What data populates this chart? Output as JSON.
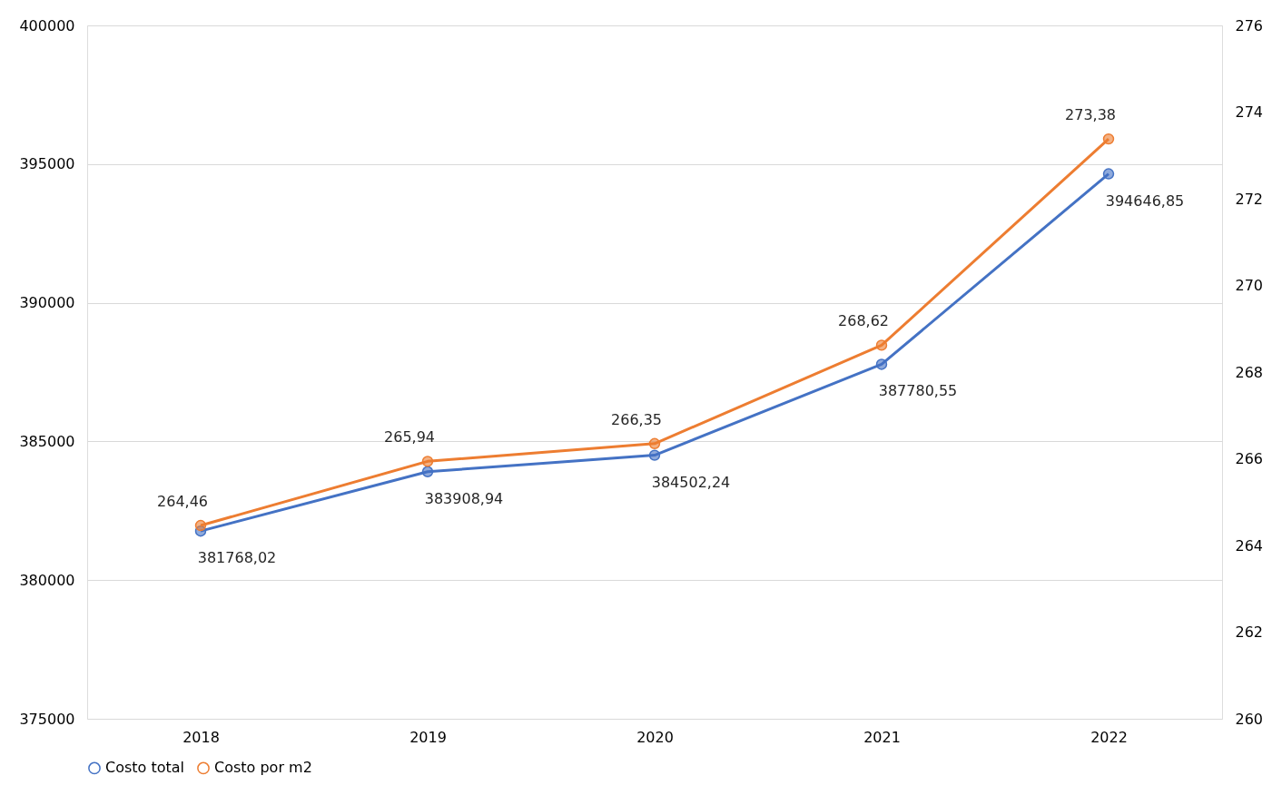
{
  "chart_data": {
    "type": "line",
    "categories": [
      "2018",
      "2019",
      "2020",
      "2021",
      "2022"
    ],
    "series": [
      {
        "name": "Costo total",
        "color": "#4472c4",
        "values": [
          381768.02,
          383908.94,
          384502.24,
          387780.55,
          394646.85
        ],
        "value_labels": [
          "381768,02",
          "383908,94",
          "384502,24",
          "387780,55",
          "394646,85"
        ]
      },
      {
        "name": "Costo por m2",
        "color": "#ed7d31",
        "axis": "y2",
        "values": [
          264.46,
          265.94,
          266.35,
          268.62,
          273.38
        ],
        "value_labels": [
          "264,46",
          "265,94",
          "266,35",
          "268,62",
          "273,38"
        ]
      }
    ],
    "ylim": [
      375000,
      400000
    ],
    "yticks": [
      375000,
      380000,
      385000,
      390000,
      395000,
      400000
    ],
    "y2lim": [
      260,
      276
    ],
    "y2ticks": [
      260,
      262,
      264,
      266,
      268,
      270,
      272,
      274,
      276
    ],
    "grid": "y",
    "legend": "bottom",
    "marker": "circle",
    "line_style": "solid"
  }
}
